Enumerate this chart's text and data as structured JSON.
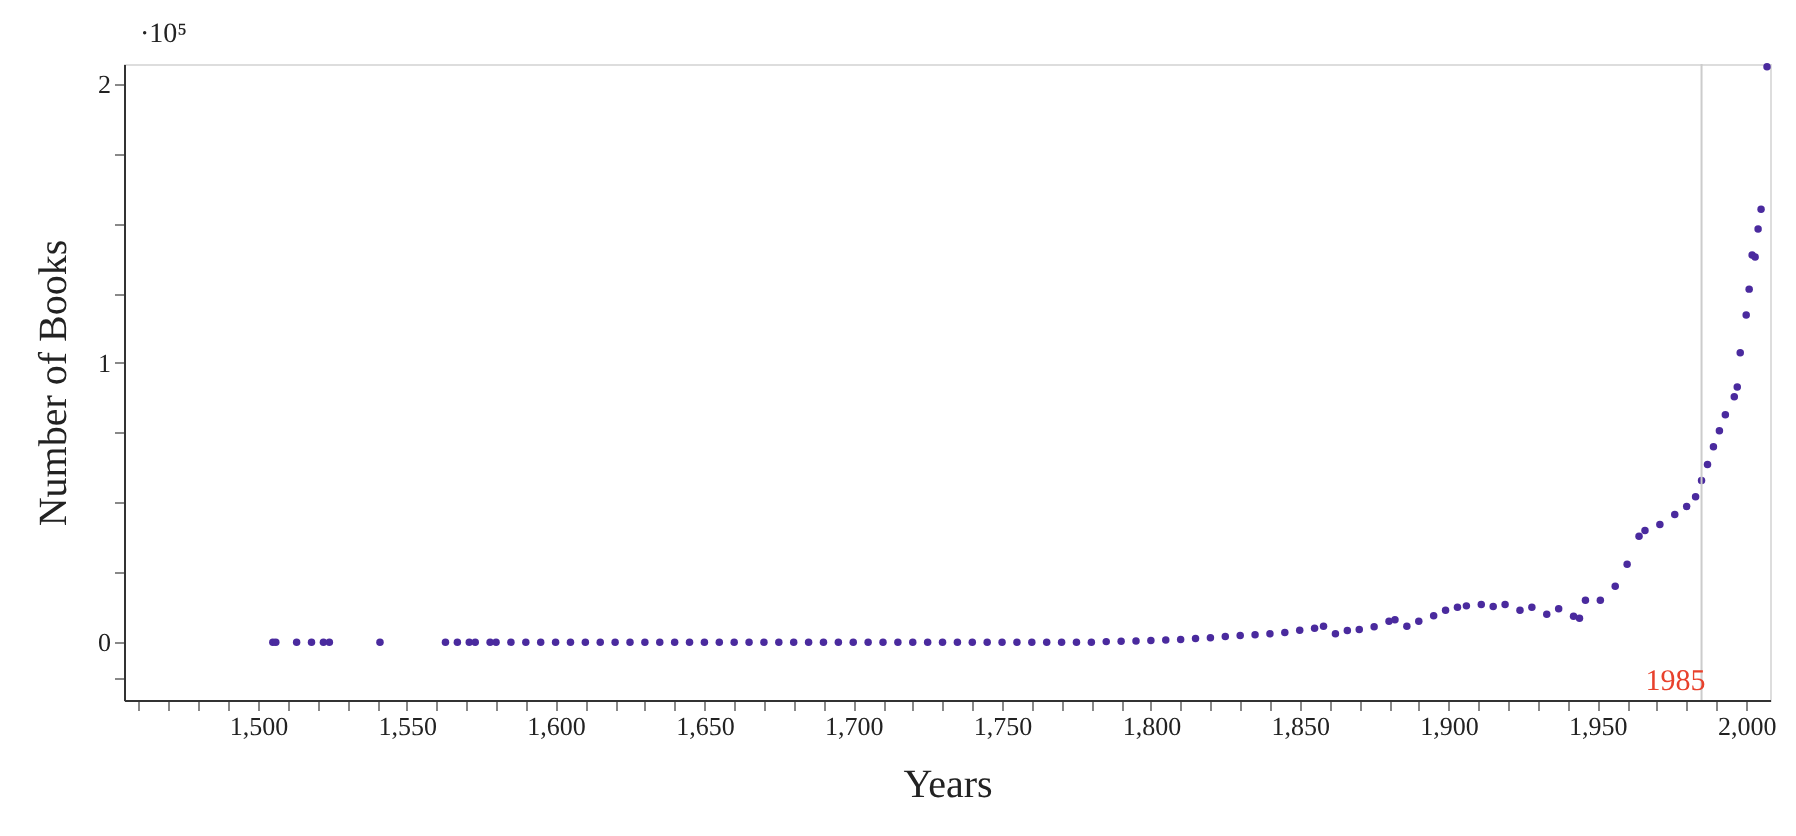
{
  "chart_data": {
    "type": "scatter",
    "xlabel": "Years",
    "ylabel": "Number of Books",
    "annotations": [
      "·10⁵"
    ],
    "x": [
      1505,
      1506,
      1513,
      1518,
      1522,
      1524,
      1541,
      1563,
      1567,
      1571,
      1573,
      1578,
      1580,
      1585,
      1590,
      1595,
      1600,
      1605,
      1610,
      1615,
      1620,
      1625,
      1630,
      1635,
      1640,
      1645,
      1650,
      1655,
      1660,
      1665,
      1670,
      1675,
      1680,
      1685,
      1690,
      1695,
      1700,
      1705,
      1710,
      1715,
      1720,
      1725,
      1730,
      1735,
      1740,
      1745,
      1750,
      1755,
      1760,
      1765,
      1770,
      1775,
      1780,
      1785,
      1790,
      1795,
      1800,
      1805,
      1810,
      1815,
      1820,
      1825,
      1830,
      1835,
      1840,
      1845,
      1850,
      1855,
      1858,
      1862,
      1866,
      1870,
      1875,
      1880,
      1882,
      1886,
      1890,
      1895,
      1899,
      1903,
      1906,
      1911,
      1915,
      1919,
      1924,
      1928,
      1933,
      1937,
      1942,
      1944,
      1946,
      1951,
      1956,
      1960,
      1964,
      1966,
      1971,
      1976,
      1980,
      1983,
      1985,
      1987,
      1989,
      1991,
      1993,
      1996,
      1997,
      1998,
      2000,
      2001,
      2002,
      2003,
      2004,
      2005,
      2007
    ],
    "series": [
      {
        "color": "#4a2a9e",
        "values": [
          0,
          0,
          0,
          0,
          0,
          0,
          0,
          0,
          0,
          0,
          0,
          0,
          0,
          0,
          0,
          0,
          0,
          0,
          0,
          0,
          0,
          0,
          0,
          0,
          0,
          0,
          0,
          0,
          0,
          0,
          0,
          0,
          0,
          0,
          0,
          0,
          0,
          0,
          0,
          0,
          0,
          0,
          0,
          0,
          0,
          0,
          0,
          0,
          0,
          0,
          0,
          0,
          0,
          0.002,
          0.003,
          0.004,
          0.006,
          0.008,
          0.01,
          0.013,
          0.016,
          0.02,
          0.024,
          0.027,
          0.03,
          0.035,
          0.043,
          0.05,
          0.057,
          0.03,
          0.042,
          0.045,
          0.055,
          0.075,
          0.08,
          0.057,
          0.075,
          0.095,
          0.114,
          0.125,
          0.13,
          0.135,
          0.128,
          0.135,
          0.114,
          0.125,
          0.1,
          0.12,
          0.093,
          0.086,
          0.15,
          0.15,
          0.2,
          0.279,
          0.379,
          0.4,
          0.421,
          0.457,
          0.486,
          0.521,
          0.579,
          0.636,
          0.7,
          0.757,
          0.814,
          0.879,
          0.914,
          1.036,
          1.171,
          1.264,
          1.386,
          1.379,
          1.479,
          1.55,
          2.06
        ]
      }
    ],
    "marker": "circle",
    "xlim": [
      1455,
      2008
    ],
    "xticks": [
      {
        "value": 1460,
        "label": null
      },
      {
        "value": 1470,
        "label": null
      },
      {
        "value": 1480,
        "label": null
      },
      {
        "value": 1490,
        "label": null
      },
      {
        "value": 1500,
        "label": "1,500"
      },
      {
        "value": 1510,
        "label": null
      },
      {
        "value": 1520,
        "label": null
      },
      {
        "value": 1530,
        "label": null
      },
      {
        "value": 1540,
        "label": null
      },
      {
        "value": 1550,
        "label": "1,550"
      },
      {
        "value": 1560,
        "label": null
      },
      {
        "value": 1570,
        "label": null
      },
      {
        "value": 1580,
        "label": null
      },
      {
        "value": 1590,
        "label": null
      },
      {
        "value": 1600,
        "label": "1,600"
      },
      {
        "value": 1610,
        "label": null
      },
      {
        "value": 1620,
        "label": null
      },
      {
        "value": 1630,
        "label": null
      },
      {
        "value": 1640,
        "label": null
      },
      {
        "value": 1650,
        "label": "1,650"
      },
      {
        "value": 1660,
        "label": null
      },
      {
        "value": 1670,
        "label": null
      },
      {
        "value": 1680,
        "label": null
      },
      {
        "value": 1690,
        "label": null
      },
      {
        "value": 1700,
        "label": "1,700"
      },
      {
        "value": 1710,
        "label": null
      },
      {
        "value": 1720,
        "label": null
      },
      {
        "value": 1730,
        "label": null
      },
      {
        "value": 1740,
        "label": null
      },
      {
        "value": 1750,
        "label": "1,750"
      },
      {
        "value": 1760,
        "label": null
      },
      {
        "value": 1770,
        "label": null
      },
      {
        "value": 1780,
        "label": null
      },
      {
        "value": 1790,
        "label": null
      },
      {
        "value": 1800,
        "label": "1,800"
      },
      {
        "value": 1810,
        "label": null
      },
      {
        "value": 1820,
        "label": null
      },
      {
        "value": 1830,
        "label": null
      },
      {
        "value": 1840,
        "label": null
      },
      {
        "value": 1850,
        "label": "1,850"
      },
      {
        "value": 1860,
        "label": null
      },
      {
        "value": 1870,
        "label": null
      },
      {
        "value": 1880,
        "label": null
      },
      {
        "value": 1890,
        "label": null
      },
      {
        "value": 1900,
        "label": "1,900"
      },
      {
        "value": 1910,
        "label": null
      },
      {
        "value": 1920,
        "label": null
      },
      {
        "value": 1930,
        "label": null
      },
      {
        "value": 1940,
        "label": null
      },
      {
        "value": 1950,
        "label": "1,950"
      },
      {
        "value": 1960,
        "label": null
      },
      {
        "value": 1970,
        "label": null
      },
      {
        "value": 1980,
        "label": null
      },
      {
        "value": 1990,
        "label": null
      },
      {
        "value": 2000,
        "label": "2,000"
      }
    ],
    "ylim": [
      -0.207,
      2.07
    ],
    "yticks": [
      {
        "value": -0.125,
        "label": null
      },
      0,
      {
        "value": 0.25,
        "label": null
      },
      {
        "value": 0.5,
        "label": null
      },
      {
        "value": 0.75,
        "label": null
      },
      1,
      {
        "value": 1.25,
        "label": null
      },
      {
        "value": 1.5,
        "label": null
      },
      {
        "value": 1.75,
        "label": null
      },
      2
    ],
    "ref_lines": [
      {
        "axis": "x",
        "value": 1985,
        "label": "1985",
        "color": "#cccccc"
      }
    ],
    "grid": false
  }
}
